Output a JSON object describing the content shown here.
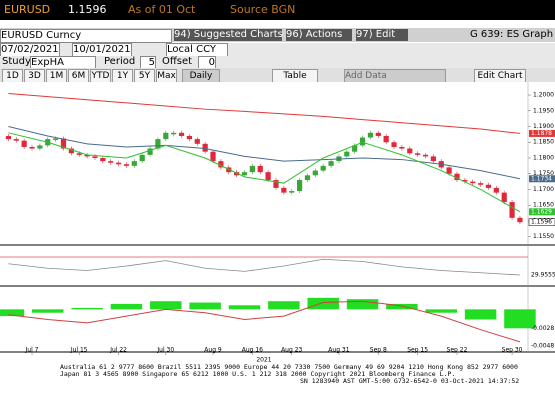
{
  "header": {
    "ticker": "EURUSD",
    "price": 1.1596,
    "as_of": "As of 01 Oct",
    "source": "Source BGN"
  },
  "toolbar": {
    "security": "EURUSD Curncy",
    "suggested": "94) Suggested Charts",
    "actions": "96) Actions",
    "edit": "97) Edit",
    "graph": "G 639: ES Graph"
  },
  "range": {
    "start": "07/02/2021",
    "end": "10/01/2021",
    "currency": "Local CCY"
  },
  "study": {
    "label": "Study",
    "name": "ExpHA",
    "period_label": "Period",
    "period": 5,
    "offset_label": "Offset",
    "offset": 0
  },
  "periods": [
    "1D",
    "3D",
    "1M",
    "6M",
    "YTD",
    "1Y",
    "5Y",
    "Max"
  ],
  "frequency": "Daily",
  "table": "Table",
  "add_data": "Add Data",
  "edit_chart": "Edit Chart",
  "chart_data": {
    "type": "candlestick",
    "open": [
      1.187,
      1.186,
      1.1855,
      1.1835,
      1.183,
      1.184,
      1.186,
      1.1862,
      1.183,
      1.1815,
      1.181,
      1.1805,
      1.18,
      1.179,
      1.1785,
      1.178,
      1.1775,
      1.179,
      1.181,
      1.183,
      1.186,
      1.188,
      1.188,
      1.187,
      1.186,
      1.1845,
      1.182,
      1.179,
      1.177,
      1.1755,
      1.1745,
      1.1755,
      1.1775,
      1.1755,
      1.173,
      1.1705,
      1.169,
      1.1695,
      1.173,
      1.1745,
      1.176,
      1.1775,
      1.179,
      1.1805,
      1.182,
      1.184,
      1.1865,
      1.188,
      1.187,
      1.185,
      1.1835,
      1.183,
      1.1815,
      1.181,
      1.1805,
      1.179,
      1.177,
      1.175,
      1.173,
      1.1725,
      1.172,
      1.1715,
      1.1705,
      1.169,
      1.166,
      1.161
    ],
    "close": [
      1.186,
      1.1855,
      1.1835,
      1.183,
      1.184,
      1.186,
      1.1862,
      1.183,
      1.1815,
      1.181,
      1.1805,
      1.18,
      1.179,
      1.1785,
      1.178,
      1.1775,
      1.179,
      1.181,
      1.183,
      1.186,
      1.188,
      1.188,
      1.187,
      1.186,
      1.1845,
      1.182,
      1.179,
      1.177,
      1.1755,
      1.1745,
      1.1755,
      1.1775,
      1.1755,
      1.173,
      1.1705,
      1.169,
      1.1695,
      1.173,
      1.1745,
      1.176,
      1.1775,
      1.179,
      1.1805,
      1.182,
      1.184,
      1.1865,
      1.188,
      1.187,
      1.185,
      1.1835,
      1.183,
      1.1815,
      1.181,
      1.1805,
      1.179,
      1.177,
      1.175,
      1.173,
      1.1725,
      1.172,
      1.1715,
      1.1705,
      1.169,
      1.166,
      1.161,
      1.1596
    ],
    "up_color": "#3aa63a",
    "down_color": "#e0283a",
    "ylim": [
      1.153,
      1.2035
    ],
    "yticks": [
      {
        "value": 1.155,
        "label": "1.1550"
      },
      {
        "value": 1.16,
        "label": "1.1600"
      },
      {
        "value": 1.165,
        "label": "1.1650"
      },
      {
        "value": 1.17,
        "label": "1.1700"
      },
      {
        "value": 1.175,
        "label": "1.1750"
      },
      {
        "value": 1.18,
        "label": "1.1800"
      },
      {
        "value": 1.185,
        "label": "1.1850"
      },
      {
        "value": 1.19,
        "label": "1.1900"
      },
      {
        "value": 1.195,
        "label": "1.1950"
      },
      {
        "value": 1.2,
        "label": "1.2000"
      }
    ],
    "xticks": [
      {
        "value": 3,
        "label": "Jul 7"
      },
      {
        "value": 9,
        "label": "Jul 15"
      },
      {
        "value": 14,
        "label": "Jul 22"
      },
      {
        "value": 20,
        "label": "Jul 30"
      },
      {
        "value": 26,
        "label": "Aug 9"
      },
      {
        "value": 31,
        "label": "Aug 16"
      },
      {
        "value": 36,
        "label": "Aug 23"
      },
      {
        "value": 42,
        "label": "Aug 31"
      },
      {
        "value": 47,
        "label": "Sep 8"
      },
      {
        "value": 52,
        "label": "Sep 15"
      },
      {
        "value": 57,
        "label": "Sep 22"
      },
      {
        "value": 64,
        "label": "Sep 30"
      }
    ],
    "year": "2021",
    "lines": [
      {
        "color": "#e03838",
        "values": [
          1.2005,
          1.1995,
          1.1985,
          1.1975,
          1.1965,
          1.1955,
          1.1948,
          1.194,
          1.1932,
          1.1922,
          1.1912,
          1.1902,
          1.1892,
          1.1878
        ]
      },
      {
        "color": "#4a6a8a",
        "values": [
          1.19,
          1.187,
          1.1845,
          1.1835,
          1.184,
          1.183,
          1.1805,
          1.179,
          1.1795,
          1.18,
          1.1795,
          1.178,
          1.176,
          1.1734
        ]
      },
      {
        "color": "#30c030",
        "values": [
          1.188,
          1.185,
          1.181,
          1.18,
          1.184,
          1.18,
          1.174,
          1.172,
          1.18,
          1.185,
          1.181,
          1.176,
          1.17,
          1.1629
        ]
      }
    ],
    "rsi": {
      "ylim": [
        10,
        90
      ],
      "level": 70,
      "level_color": "#e05050",
      "color": "#888888",
      "values": [
        55,
        45,
        40,
        50,
        62,
        45,
        38,
        50,
        65,
        60,
        48,
        40,
        35,
        29.9555
      ]
    },
    "macd": {
      "ylim": [
        -0.006,
        0.003
      ],
      "hist_color": "#22dd22",
      "line_color": "#d04040",
      "hist": [
        -0.001,
        -0.0005,
        0.0002,
        0.0008,
        0.0012,
        0.001,
        0.0006,
        0.0012,
        0.0017,
        0.0015,
        0.0008,
        -0.0005,
        -0.0015,
        -0.0028
      ],
      "line": [
        -0.0008,
        -0.0015,
        -0.002,
        -0.001,
        0.0,
        -0.0005,
        -0.0015,
        -0.001,
        0.001,
        0.0012,
        0.0005,
        -0.001,
        -0.003,
        -0.0048
      ]
    }
  },
  "footer": [
    "Australia 61 2 9777 8600 Brazil 5511 2395 9000 Europe 44 20 7330 7500 Germany 49 69 9204 1210 Hong Kong 852 2977 6000",
    "Japan 81 3 4565 8900       Singapore 65 6212 1000       U.S. 1 212 318 2000       Copyright 2021 Bloomberg Finance L.P.",
    "SN 1283940 AST  GMT-5:00 G732-6542-0 03-Oct-2021 14:37:52"
  ]
}
